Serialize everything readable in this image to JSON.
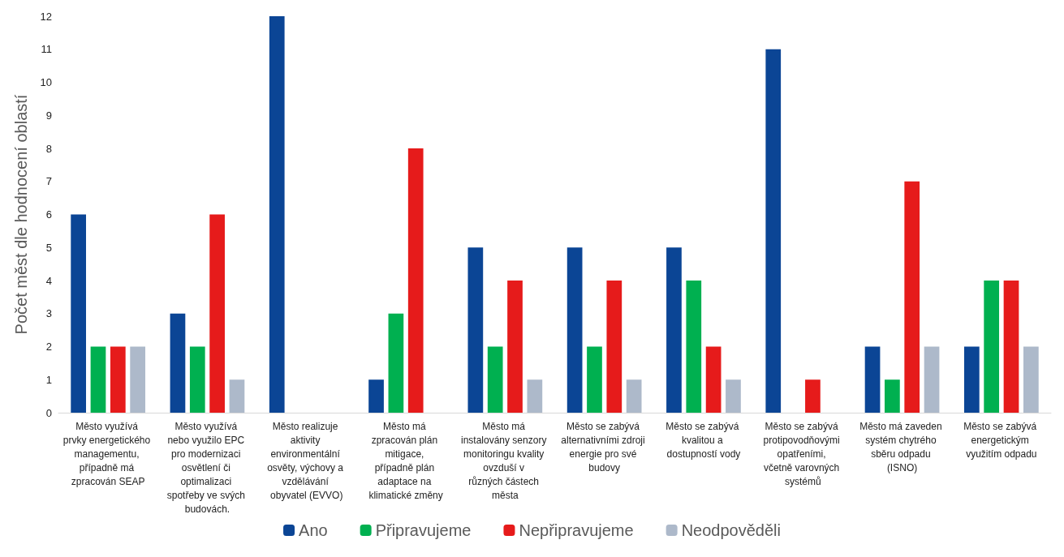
{
  "chart_data": {
    "type": "bar",
    "ylabel": "Počet měst dle hodnocení oblastí",
    "categories": [
      "Město využívá prvky energetického managementu, případně má zpracován SEAP",
      "Město využívá nebo využilo EPC pro modernizaci osvětlení či optimalizaci spotřeby ve svých budovách.",
      "Město realizuje aktivity environmentální osvěty, výchovy a vzdělávání obyvatel (EVVO)",
      "Město má zpracován plán mitigace, případně plán adaptace na klimatické změny",
      "Město má instalovány senzory monitoringu kvality ovzduší v různých částech města",
      "Město se zabývá alternativními zdroji energie pro své budovy",
      "Město se zabývá kvalitou a dostupností vody",
      "Město se zabývá protipovodňovými opatřeními, včetně varovných systémů",
      "Město má zaveden systém chytrého sběru odpadu (ISNO)",
      "Město se zabývá energetickým využitím odpadu"
    ],
    "series": [
      {
        "name": "Ano",
        "color": "#0b4595",
        "values": [
          6,
          3,
          12,
          1,
          5,
          5,
          5,
          11,
          2,
          2
        ]
      },
      {
        "name": "Připravujeme",
        "color": "#00b050",
        "values": [
          2,
          2,
          0,
          3,
          2,
          2,
          4,
          0,
          1,
          4
        ]
      },
      {
        "name": "Nepřipravujeme",
        "color": "#e61b1b",
        "values": [
          2,
          6,
          0,
          8,
          4,
          4,
          2,
          1,
          7,
          4
        ]
      },
      {
        "name": "Neodpověděli",
        "color": "#adb9ca",
        "values": [
          2,
          1,
          0,
          0,
          1,
          1,
          1,
          0,
          2,
          2
        ]
      }
    ],
    "ylim": [
      0,
      12
    ],
    "yticks": [
      0,
      1,
      2,
      3,
      4,
      5,
      6,
      7,
      8,
      9,
      10,
      11,
      12
    ],
    "grid": false,
    "legend": "bottom"
  }
}
